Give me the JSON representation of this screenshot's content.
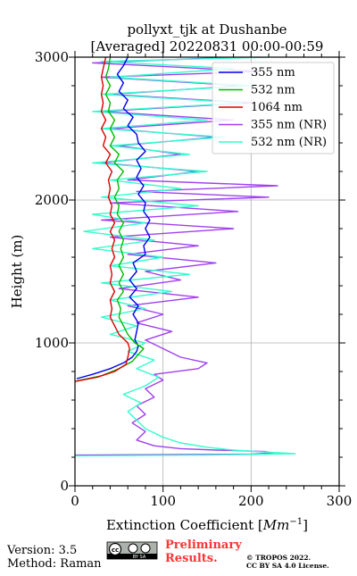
{
  "chart_data": {
    "type": "line",
    "title_line1": "pollyxt_tjk at Dushanbe",
    "title_line2": "[Averaged] 20220831 00:00-00:59",
    "xlabel": "Extinction Coefficient [",
    "xlabel_unit": "Mm",
    "xlabel_exp": "−1",
    "xlabel_end": "]",
    "ylabel": "Height (m)",
    "xlim": [
      0,
      300
    ],
    "ylim": [
      0,
      3000
    ],
    "x_ticks": [
      "0",
      "100",
      "200",
      "300"
    ],
    "y_ticks": [
      "0",
      "1000",
      "2000",
      "3000"
    ],
    "grid": true,
    "legend_position": "top-right",
    "series": [
      {
        "name": "355 nm",
        "color": "#0000ee",
        "points": [
          [
            2,
            750
          ],
          [
            20,
            780
          ],
          [
            40,
            820
          ],
          [
            55,
            860
          ],
          [
            65,
            900
          ],
          [
            70,
            940
          ],
          [
            72,
            980
          ],
          [
            68,
            1020
          ],
          [
            70,
            1080
          ],
          [
            72,
            1140
          ],
          [
            66,
            1200
          ],
          [
            72,
            1260
          ],
          [
            62,
            1320
          ],
          [
            70,
            1380
          ],
          [
            62,
            1440
          ],
          [
            70,
            1500
          ],
          [
            66,
            1560
          ],
          [
            80,
            1620
          ],
          [
            78,
            1680
          ],
          [
            85,
            1740
          ],
          [
            80,
            1800
          ],
          [
            85,
            1860
          ],
          [
            78,
            1920
          ],
          [
            80,
            1980
          ],
          [
            72,
            2040
          ],
          [
            78,
            2100
          ],
          [
            70,
            2160
          ],
          [
            75,
            2220
          ],
          [
            70,
            2280
          ],
          [
            80,
            2340
          ],
          [
            72,
            2400
          ],
          [
            70,
            2460
          ],
          [
            60,
            2520
          ],
          [
            66,
            2580
          ],
          [
            55,
            2640
          ],
          [
            60,
            2700
          ],
          [
            50,
            2760
          ],
          [
            55,
            2820
          ],
          [
            48,
            2880
          ],
          [
            55,
            2940
          ],
          [
            60,
            3000
          ]
        ]
      },
      {
        "name": "532 nm",
        "color": "#00bb00",
        "points": [
          [
            2,
            735
          ],
          [
            30,
            770
          ],
          [
            50,
            820
          ],
          [
            65,
            870
          ],
          [
            72,
            920
          ],
          [
            78,
            960
          ],
          [
            68,
            1000
          ],
          [
            60,
            1060
          ],
          [
            55,
            1120
          ],
          [
            50,
            1180
          ],
          [
            52,
            1240
          ],
          [
            48,
            1300
          ],
          [
            55,
            1360
          ],
          [
            50,
            1420
          ],
          [
            55,
            1480
          ],
          [
            50,
            1540
          ],
          [
            55,
            1600
          ],
          [
            52,
            1660
          ],
          [
            55,
            1720
          ],
          [
            50,
            1780
          ],
          [
            55,
            1840
          ],
          [
            48,
            1900
          ],
          [
            50,
            1960
          ],
          [
            45,
            2020
          ],
          [
            50,
            2080
          ],
          [
            48,
            2140
          ],
          [
            55,
            2200
          ],
          [
            45,
            2260
          ],
          [
            50,
            2320
          ],
          [
            40,
            2380
          ],
          [
            45,
            2440
          ],
          [
            40,
            2500
          ],
          [
            45,
            2560
          ],
          [
            38,
            2620
          ],
          [
            40,
            2680
          ],
          [
            35,
            2740
          ],
          [
            40,
            2800
          ],
          [
            35,
            2860
          ],
          [
            38,
            2920
          ],
          [
            40,
            3000
          ]
        ]
      },
      {
        "name": "1064 nm",
        "color": "#dd0000",
        "points": [
          [
            0,
            730
          ],
          [
            25,
            760
          ],
          [
            45,
            800
          ],
          [
            58,
            850
          ],
          [
            60,
            900
          ],
          [
            62,
            960
          ],
          [
            60,
            1000
          ],
          [
            50,
            1060
          ],
          [
            45,
            1120
          ],
          [
            40,
            1180
          ],
          [
            42,
            1240
          ],
          [
            40,
            1300
          ],
          [
            45,
            1360
          ],
          [
            40,
            1420
          ],
          [
            42,
            1480
          ],
          [
            40,
            1540
          ],
          [
            45,
            1600
          ],
          [
            42,
            1660
          ],
          [
            45,
            1720
          ],
          [
            40,
            1780
          ],
          [
            45,
            1840
          ],
          [
            40,
            1900
          ],
          [
            42,
            1960
          ],
          [
            38,
            2020
          ],
          [
            40,
            2080
          ],
          [
            38,
            2140
          ],
          [
            42,
            2200
          ],
          [
            35,
            2260
          ],
          [
            40,
            2320
          ],
          [
            32,
            2380
          ],
          [
            35,
            2440
          ],
          [
            30,
            2500
          ],
          [
            35,
            2560
          ],
          [
            30,
            2620
          ],
          [
            32,
            2680
          ],
          [
            30,
            2740
          ],
          [
            32,
            2800
          ],
          [
            30,
            2860
          ],
          [
            32,
            2920
          ],
          [
            35,
            3000
          ]
        ]
      },
      {
        "name": "355 nm (NR)",
        "color": "#a040f0",
        "points": [
          [
            0,
            215
          ],
          [
            100,
            218
          ],
          [
            200,
            222
          ],
          [
            225,
            230
          ],
          [
            215,
            240
          ],
          [
            160,
            250
          ],
          [
            120,
            260
          ],
          [
            90,
            280
          ],
          [
            70,
            320
          ],
          [
            80,
            380
          ],
          [
            65,
            440
          ],
          [
            80,
            500
          ],
          [
            70,
            560
          ],
          [
            90,
            620
          ],
          [
            80,
            680
          ],
          [
            100,
            740
          ],
          [
            90,
            780
          ],
          [
            140,
            820
          ],
          [
            150,
            860
          ],
          [
            120,
            900
          ],
          [
            100,
            960
          ],
          [
            80,
            1020
          ],
          [
            110,
            1080
          ],
          [
            70,
            1140
          ],
          [
            100,
            1200
          ],
          [
            60,
            1260
          ],
          [
            140,
            1320
          ],
          [
            50,
            1380
          ],
          [
            120,
            1440
          ],
          [
            80,
            1500
          ],
          [
            160,
            1560
          ],
          [
            60,
            1620
          ],
          [
            140,
            1680
          ],
          [
            40,
            1740
          ],
          [
            180,
            1800
          ],
          [
            30,
            1860
          ],
          [
            185,
            1920
          ],
          [
            40,
            1980
          ],
          [
            220,
            2020
          ],
          [
            70,
            2060
          ],
          [
            230,
            2100
          ],
          [
            60,
            2140
          ],
          [
            140,
            2200
          ],
          [
            30,
            2260
          ],
          [
            120,
            2320
          ],
          [
            50,
            2380
          ],
          [
            160,
            2440
          ],
          [
            40,
            2500
          ],
          [
            180,
            2560
          ],
          [
            30,
            2620
          ],
          [
            200,
            2680
          ],
          [
            40,
            2740
          ],
          [
            190,
            2800
          ],
          [
            30,
            2860
          ],
          [
            210,
            2900
          ],
          [
            20,
            2960
          ],
          [
            180,
            3000
          ]
        ]
      },
      {
        "name": "532 nm (NR)",
        "color": "#33ffcc",
        "points": [
          [
            0,
            210
          ],
          [
            150,
            215
          ],
          [
            250,
            225
          ],
          [
            220,
            235
          ],
          [
            180,
            250
          ],
          [
            150,
            270
          ],
          [
            120,
            300
          ],
          [
            100,
            340
          ],
          [
            80,
            400
          ],
          [
            70,
            460
          ],
          [
            60,
            520
          ],
          [
            75,
            580
          ],
          [
            55,
            640
          ],
          [
            80,
            700
          ],
          [
            95,
            760
          ],
          [
            70,
            820
          ],
          [
            90,
            880
          ],
          [
            60,
            940
          ],
          [
            80,
            1000
          ],
          [
            40,
            1060
          ],
          [
            70,
            1120
          ],
          [
            30,
            1180
          ],
          [
            80,
            1240
          ],
          [
            40,
            1300
          ],
          [
            110,
            1360
          ],
          [
            30,
            1420
          ],
          [
            130,
            1480
          ],
          [
            40,
            1540
          ],
          [
            100,
            1600
          ],
          [
            20,
            1660
          ],
          [
            90,
            1720
          ],
          [
            10,
            1780
          ],
          [
            80,
            1840
          ],
          [
            20,
            1900
          ],
          [
            140,
            1960
          ],
          [
            30,
            2020
          ],
          [
            120,
            2080
          ],
          [
            40,
            2140
          ],
          [
            150,
            2200
          ],
          [
            20,
            2260
          ],
          [
            130,
            2320
          ],
          [
            40,
            2380
          ],
          [
            170,
            2440
          ],
          [
            30,
            2500
          ],
          [
            150,
            2560
          ],
          [
            20,
            2620
          ],
          [
            190,
            2680
          ],
          [
            30,
            2740
          ],
          [
            200,
            2800
          ],
          [
            40,
            2860
          ],
          [
            180,
            2920
          ],
          [
            30,
            2970
          ],
          [
            220,
            3000
          ]
        ]
      }
    ]
  },
  "footer": {
    "version": "Version: 3.5",
    "method": "Method: Raman",
    "cc_text": "cc",
    "by_sa": "BY   SA",
    "preliminary1": "Preliminary",
    "preliminary2": "Results.",
    "copyright1": "© TROPOS 2022.",
    "copyright2": "CC BY SA 4.0 License."
  }
}
